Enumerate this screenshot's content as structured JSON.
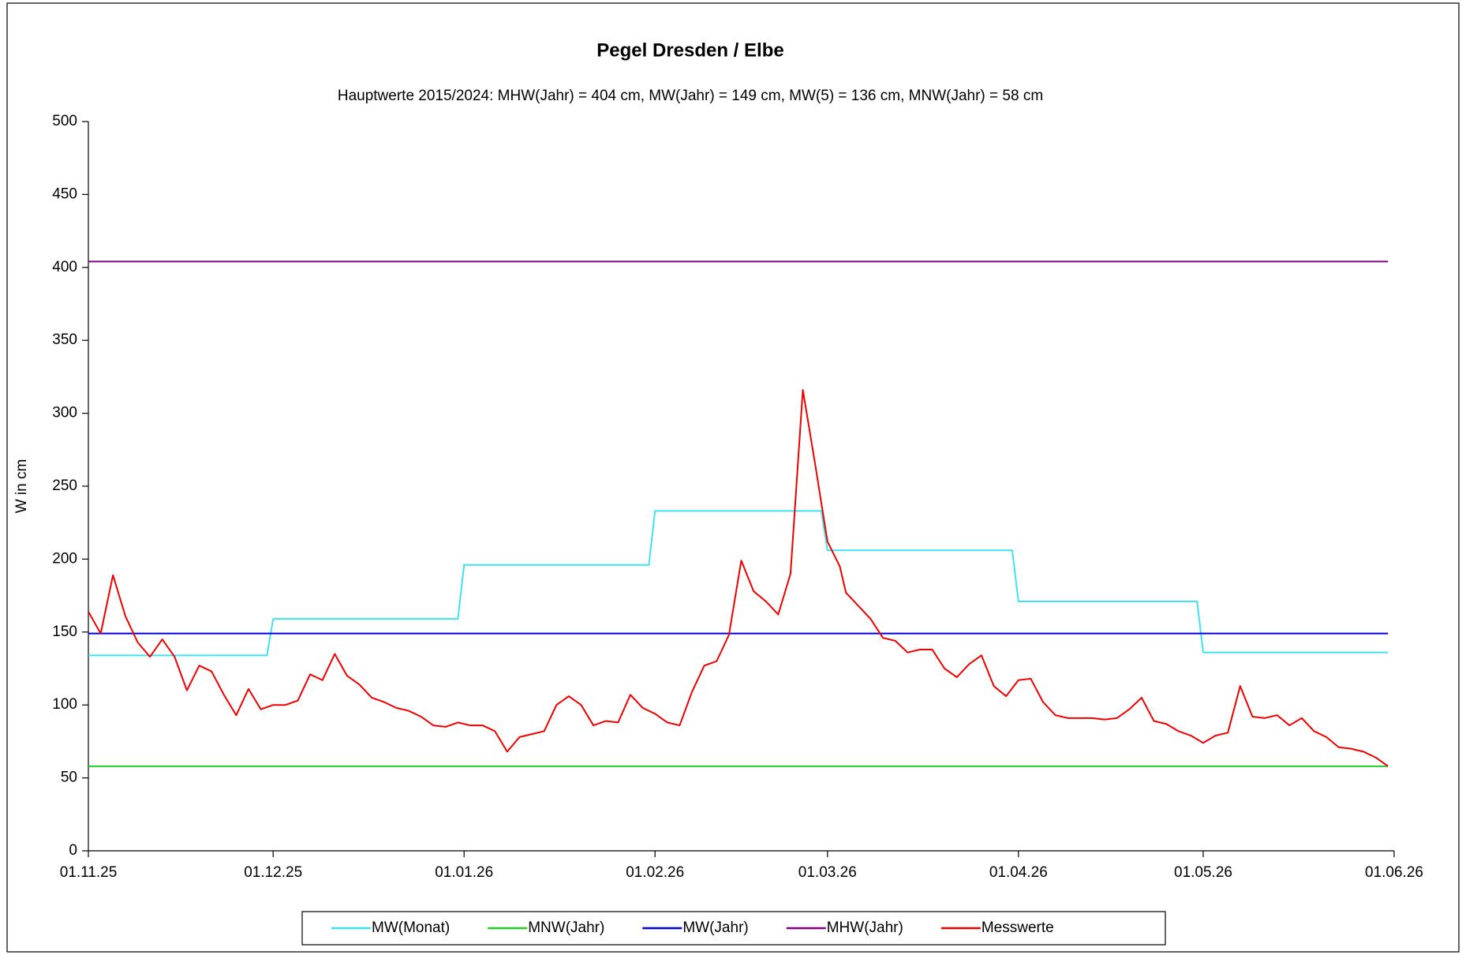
{
  "chart_data": {
    "type": "line",
    "title": "Pegel Dresden / Elbe",
    "subtitle": "Hauptwerte 2015/2024: MHW(Jahr) = 404 cm, MW(Jahr) = 149 cm, MW(5) = 136 cm, MNW(Jahr) = 58 cm",
    "y_label": "W in cm",
    "xlim": [
      "01.11.25",
      "01.06.26"
    ],
    "xticks": [
      "01.11.25",
      "01.12.25",
      "01.01.26",
      "01.02.26",
      "01.03.26",
      "01.04.26",
      "01.05.26",
      "01.06.26"
    ],
    "ylim": [
      0,
      500
    ],
    "yticks": [
      0,
      50,
      100,
      150,
      200,
      250,
      300,
      350,
      400,
      450,
      500
    ],
    "grid": false,
    "legend": "bottom",
    "series": [
      {
        "name": "MW(Monat)",
        "color": "#3fe3ee",
        "x": [
          "01.11.25",
          "30.11.25",
          "01.12.25",
          "31.12.25",
          "01.01.26",
          "31.01.26",
          "01.02.26",
          "28.02.26",
          "01.03.26",
          "31.03.26",
          "01.04.26",
          "30.04.26",
          "01.05.26",
          "31.05.26"
        ],
        "values": [
          134,
          134,
          159,
          159,
          196,
          196,
          233,
          233,
          206,
          206,
          171,
          171,
          136,
          136
        ]
      },
      {
        "name": "MNW(Jahr)",
        "color": "#22cc22",
        "x": [
          "01.11.25",
          "31.05.26"
        ],
        "values": [
          58,
          58
        ]
      },
      {
        "name": "MW(Jahr)",
        "color": "#0000dd",
        "x": [
          "01.11.25",
          "31.05.26"
        ],
        "values": [
          149,
          149
        ]
      },
      {
        "name": "MHW(Jahr)",
        "color": "#800080",
        "x": [
          "01.11.25",
          "31.05.26"
        ],
        "values": [
          404,
          404
        ]
      },
      {
        "name": "Messwerte",
        "color": "#ee0000",
        "x": [
          "01.11.25",
          "03.11.25",
          "05.11.25",
          "07.11.25",
          "09.11.25",
          "11.11.25",
          "13.11.25",
          "15.11.25",
          "17.11.25",
          "19.11.25",
          "21.11.25",
          "23.11.25",
          "25.11.25",
          "27.11.25",
          "29.11.25",
          "01.12.25",
          "03.12.25",
          "05.12.25",
          "07.12.25",
          "09.12.25",
          "11.12.25",
          "13.12.25",
          "15.12.25",
          "17.12.25",
          "19.12.25",
          "21.12.25",
          "23.12.25",
          "25.12.25",
          "27.12.25",
          "29.12.25",
          "31.12.25",
          "02.01.26",
          "04.01.26",
          "06.01.26",
          "08.01.26",
          "10.01.26",
          "12.01.26",
          "14.01.26",
          "16.01.26",
          "18.01.26",
          "20.01.26",
          "22.01.26",
          "24.01.26",
          "26.01.26",
          "28.01.26",
          "30.01.26",
          "01.02.26",
          "03.02.26",
          "05.02.26",
          "07.02.26",
          "09.02.26",
          "11.02.26",
          "13.02.26",
          "15.02.26",
          "17.02.26",
          "19.02.26",
          "21.02.26",
          "23.02.26",
          "25.02.26",
          "27.02.26",
          "01.03.26",
          "03.03.26",
          "04.03.26",
          "06.03.26",
          "08.03.26",
          "10.03.26",
          "12.03.26",
          "14.03.26",
          "16.03.26",
          "18.03.26",
          "20.03.26",
          "22.03.26",
          "24.03.26",
          "26.03.26",
          "28.03.26",
          "30.03.26",
          "01.04.26",
          "03.04.26",
          "05.04.26",
          "07.04.26",
          "09.04.26",
          "11.04.26",
          "13.04.26",
          "15.04.26",
          "17.04.26",
          "19.04.26",
          "21.04.26",
          "23.04.26",
          "25.04.26",
          "27.04.26",
          "29.04.26",
          "01.05.26",
          "03.05.26",
          "05.05.26",
          "07.05.26",
          "09.05.26",
          "11.05.26",
          "13.05.26",
          "15.05.26",
          "17.05.26",
          "19.05.26",
          "21.05.26",
          "23.05.26",
          "25.05.26",
          "27.05.26",
          "29.05.26",
          "31.05.26"
        ],
        "values": [
          164,
          149,
          189,
          161,
          143,
          133,
          145,
          133,
          110,
          127,
          123,
          107,
          93,
          111,
          97,
          100,
          100,
          103,
          121,
          117,
          135,
          120,
          114,
          105,
          102,
          98,
          96,
          92,
          86,
          85,
          88,
          86,
          86,
          82,
          68,
          78,
          80,
          82,
          100,
          106,
          100,
          86,
          89,
          88,
          107,
          98,
          94,
          88,
          86,
          109,
          127,
          130,
          148,
          199,
          178,
          171,
          162,
          190,
          316,
          265,
          212,
          195,
          177,
          168,
          159,
          146,
          144,
          136,
          138,
          138,
          125,
          119,
          128,
          134,
          113,
          106,
          117,
          118,
          102,
          93,
          91,
          91,
          91,
          90,
          91,
          97,
          105,
          89,
          87,
          82,
          79,
          74,
          79,
          81,
          113,
          92,
          91,
          93,
          86,
          91,
          82,
          78,
          71,
          70,
          68,
          64,
          58
        ]
      }
    ]
  }
}
